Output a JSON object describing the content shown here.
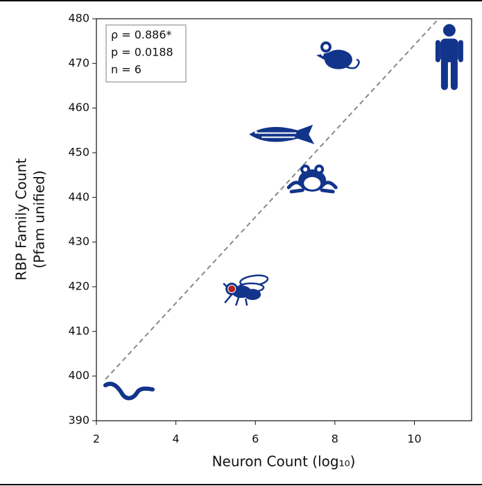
{
  "chart_data": {
    "type": "scatter",
    "xlabel": "Neuron Count (log₁₀)",
    "ylabel": [
      "RBP Family Count",
      "(Pfam unified)"
    ],
    "annotations": [
      "ρ = 0.886*",
      "p = 0.0188",
      "n = 6"
    ],
    "x": [
      2.82,
      5.51,
      7.43,
      6.68,
      8.02,
      10.88
    ],
    "values": [
      396.7,
      419.2,
      444.4,
      454.1,
      471.5,
      471.5
    ],
    "markers": [
      "worm",
      "fly",
      "frog",
      "fish",
      "mouse",
      "human"
    ],
    "color": "#12348a",
    "fit_line": {
      "x": [
        2.23,
        10.6
      ],
      "values": [
        399.3,
        479.9
      ],
      "color": "#888888"
    },
    "xlim": [
      2,
      11.44
    ],
    "ylim": [
      390,
      480
    ],
    "xticks": [
      2,
      4,
      6,
      8,
      10
    ],
    "yticks": [
      390,
      400,
      410,
      420,
      430,
      440,
      450,
      460,
      470,
      480
    ]
  }
}
